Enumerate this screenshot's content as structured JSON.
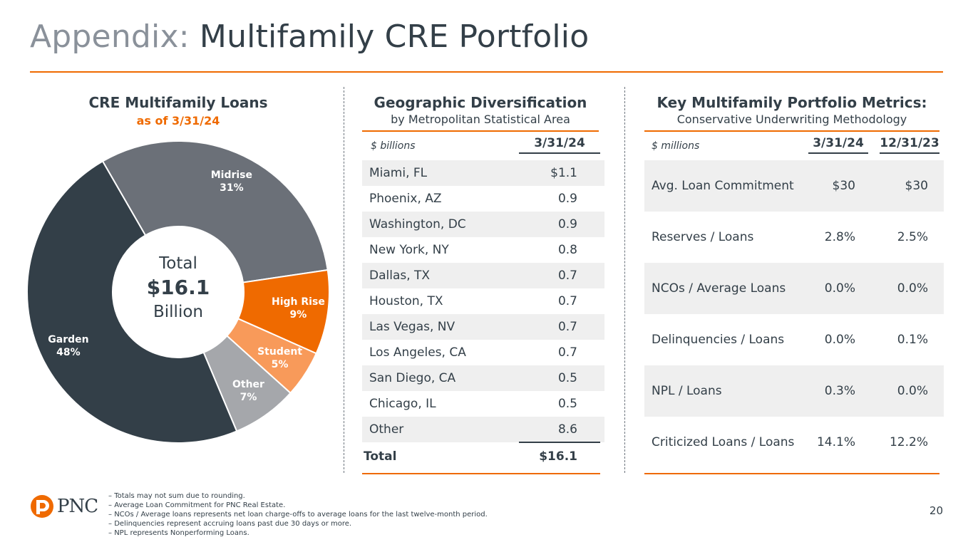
{
  "title": {
    "prefix": "Appendix:",
    "main": "Multifamily CRE Portfolio"
  },
  "colors": {
    "accent": "#ef6a00",
    "dark": "#333f48",
    "midgray": "#6b7078",
    "lightorange": "#f89a5a",
    "lightgray": "#a5a7ab"
  },
  "loans_section": {
    "title": "CRE Multifamily Loans",
    "subtitle": "as of 3/31/24"
  },
  "chart_data": {
    "type": "pie",
    "title": "CRE Multifamily Loans",
    "subtitle": "as of 3/31/24",
    "center_label": [
      "Total",
      "$16.1",
      "Billion"
    ],
    "slices": [
      {
        "name": "Midrise",
        "value": 31,
        "label": "31%",
        "color": "#6b7078"
      },
      {
        "name": "High Rise",
        "value": 9,
        "label": "9%",
        "color": "#ef6a00"
      },
      {
        "name": "Student",
        "value": 5,
        "label": "5%",
        "color": "#f89a5a"
      },
      {
        "name": "Other",
        "value": 7,
        "label": "7%",
        "color": "#a5a7ab"
      },
      {
        "name": "Garden",
        "value": 48,
        "label": "48%",
        "color": "#333f48"
      }
    ]
  },
  "geo": {
    "title": "Geographic Diversification",
    "subtitle": "by Metropolitan Statistical Area",
    "unit": "$ billions",
    "column": "3/31/24",
    "rows": [
      {
        "label": "Miami, FL",
        "value": "$1.1"
      },
      {
        "label": "Phoenix, AZ",
        "value": "0.9"
      },
      {
        "label": "Washington, DC",
        "value": "0.9"
      },
      {
        "label": "New York, NY",
        "value": "0.8"
      },
      {
        "label": "Dallas, TX",
        "value": "0.7"
      },
      {
        "label": "Houston, TX",
        "value": "0.7"
      },
      {
        "label": "Las Vegas, NV",
        "value": "0.7"
      },
      {
        "label": "Los Angeles, CA",
        "value": "0.7"
      },
      {
        "label": "San Diego, CA",
        "value": "0.5"
      },
      {
        "label": "Chicago, IL",
        "value": "0.5"
      },
      {
        "label": "Other",
        "value": "8.6"
      }
    ],
    "total_label": "Total",
    "total_value": "$16.1"
  },
  "metrics": {
    "title": "Key Multifamily Portfolio Metrics:",
    "subtitle": "Conservative Underwriting Methodology",
    "unit": "$ millions",
    "columns": [
      "3/31/24",
      "12/31/23"
    ],
    "rows": [
      {
        "label": "Avg. Loan Commitment",
        "v1": "$30",
        "v2": "$30"
      },
      {
        "label": "Reserves / Loans",
        "v1": "2.8%",
        "v2": "2.5%"
      },
      {
        "label": "NCOs / Average Loans",
        "v1": "0.0%",
        "v2": "0.0%"
      },
      {
        "label": "Delinquencies / Loans",
        "v1": "0.0%",
        "v2": "0.1%"
      },
      {
        "label": "NPL / Loans",
        "v1": "0.3%",
        "v2": "0.0%"
      },
      {
        "label": "Criticized Loans / Loans",
        "v1": "14.1%",
        "v2": "12.2%"
      }
    ]
  },
  "footnotes": [
    "Totals may not sum due to rounding.",
    "Average Loan Commitment for PNC Real Estate.",
    "NCOs / Average loans represents net loan charge-offs to average loans for the last twelve-month period.",
    "Delinquencies represent accruing loans past due 30 days or more.",
    "NPL represents Nonperforming Loans."
  ],
  "logo_text": "PNC",
  "page_number": "20"
}
